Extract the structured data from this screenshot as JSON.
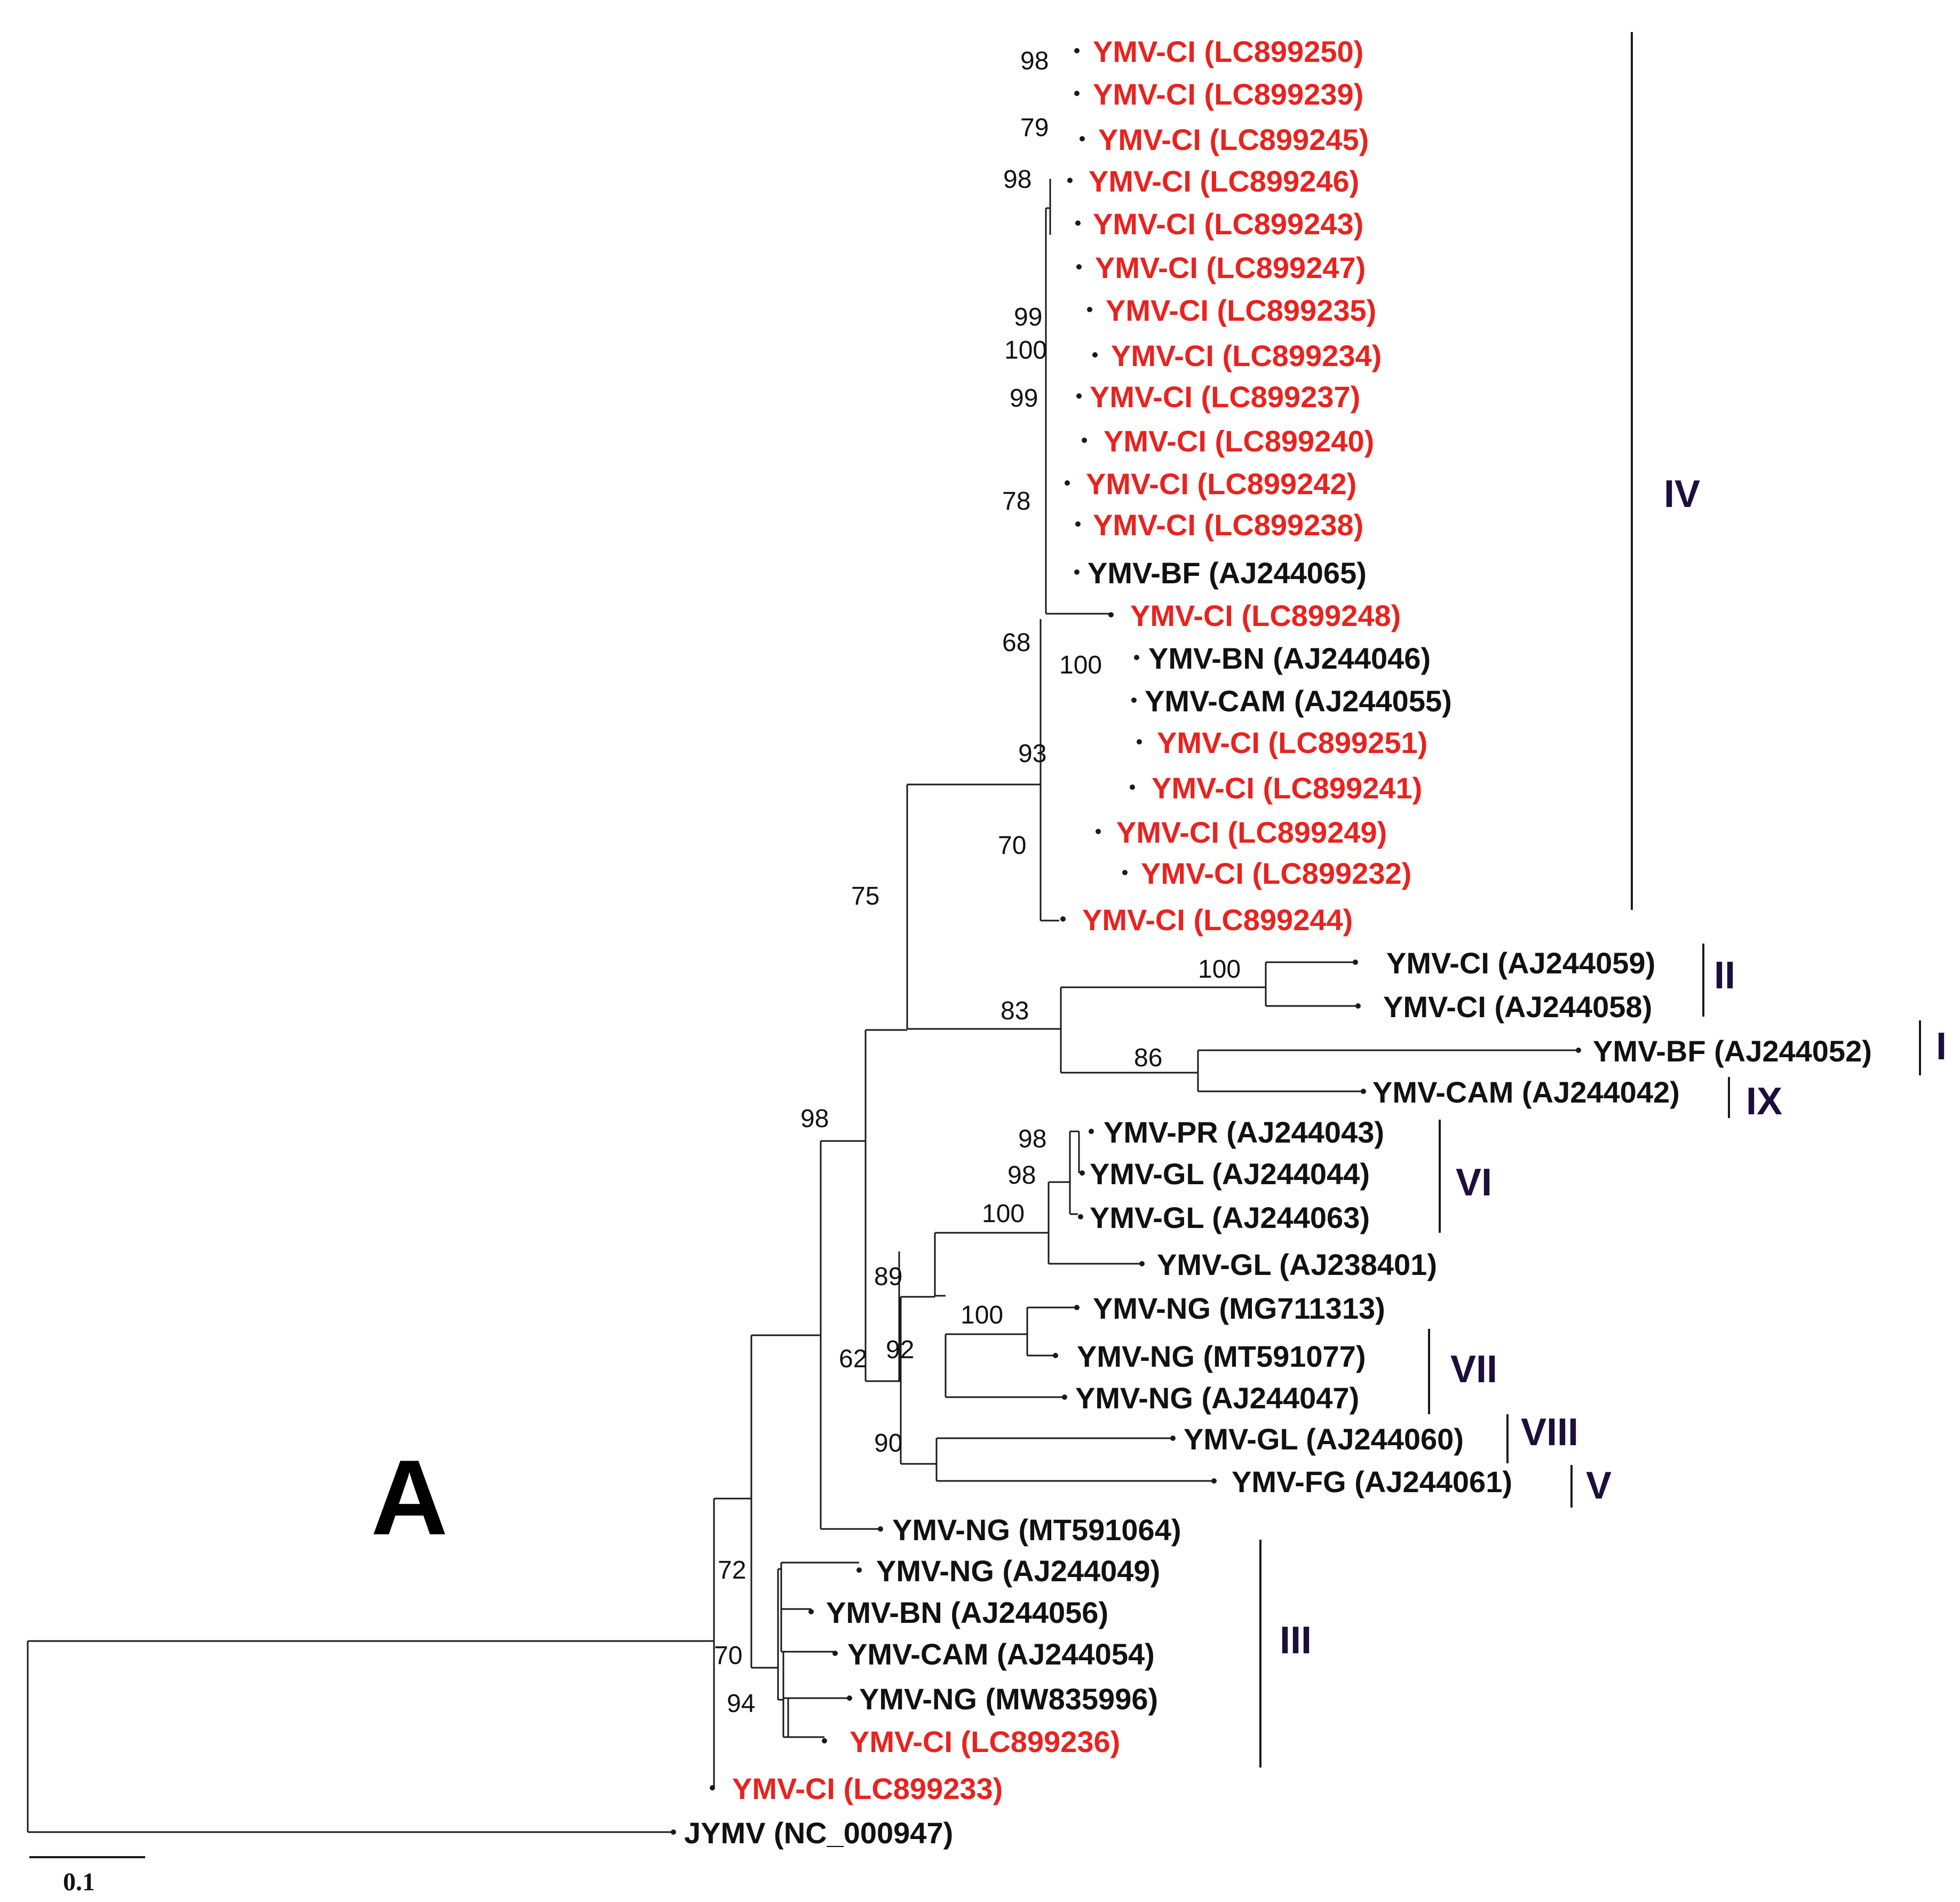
{
  "figure": {
    "panel_label": "A",
    "scale_label": "0.1"
  },
  "leaves": [
    {
      "id": "L1",
      "label": "YMV-CI (LC899250)",
      "color": "red"
    },
    {
      "id": "L2",
      "label": "YMV-CI (LC899239)",
      "color": "red"
    },
    {
      "id": "L3",
      "label": "YMV-CI (LC899245)",
      "color": "red"
    },
    {
      "id": "L4",
      "label": "YMV-CI (LC899246)",
      "color": "red"
    },
    {
      "id": "L5",
      "label": "YMV-CI (LC899243)",
      "color": "red"
    },
    {
      "id": "L6",
      "label": "YMV-CI (LC899247)",
      "color": "red"
    },
    {
      "id": "L7",
      "label": "YMV-CI (LC899235)",
      "color": "red"
    },
    {
      "id": "L8",
      "label": "YMV-CI (LC899234)",
      "color": "red"
    },
    {
      "id": "L9",
      "label": "YMV-CI (LC899237)",
      "color": "red"
    },
    {
      "id": "L10",
      "label": "YMV-CI (LC899240)",
      "color": "red"
    },
    {
      "id": "L11",
      "label": "YMV-CI (LC899242)",
      "color": "red"
    },
    {
      "id": "L12",
      "label": "YMV-CI (LC899238)",
      "color": "red"
    },
    {
      "id": "L13",
      "label": "YMV-BF (AJ244065)",
      "color": "black"
    },
    {
      "id": "L14",
      "label": "YMV-CI (LC899248)",
      "color": "red"
    },
    {
      "id": "L15",
      "label": "YMV-BN (AJ244046)",
      "color": "black"
    },
    {
      "id": "L16",
      "label": "YMV-CAM (AJ244055)",
      "color": "black"
    },
    {
      "id": "L17",
      "label": "YMV-CI (LC899251)",
      "color": "red"
    },
    {
      "id": "L18",
      "label": "YMV-CI (LC899241)",
      "color": "red"
    },
    {
      "id": "L19",
      "label": "YMV-CI (LC899249)",
      "color": "red"
    },
    {
      "id": "L20",
      "label": "YMV-CI (LC899232)",
      "color": "red"
    },
    {
      "id": "L21",
      "label": "YMV-CI (LC899244)",
      "color": "red"
    },
    {
      "id": "L22",
      "label": "YMV-CI (AJ244059)",
      "color": "black"
    },
    {
      "id": "L23",
      "label": "YMV-CI (AJ244058)",
      "color": "black"
    },
    {
      "id": "L24",
      "label": "YMV-BF (AJ244052)",
      "color": "black"
    },
    {
      "id": "L25",
      "label": "YMV-CAM (AJ244042)",
      "color": "black"
    },
    {
      "id": "L26",
      "label": "YMV-PR (AJ244043)",
      "color": "black"
    },
    {
      "id": "L27",
      "label": "YMV-GL (AJ244044)",
      "color": "black"
    },
    {
      "id": "L28",
      "label": "YMV-GL (AJ244063)",
      "color": "black"
    },
    {
      "id": "L29",
      "label": "YMV-GL (AJ238401)",
      "color": "black"
    },
    {
      "id": "L30",
      "label": "YMV-NG (MG711313)",
      "color": "black"
    },
    {
      "id": "L31",
      "label": "YMV-NG (MT591077)",
      "color": "black"
    },
    {
      "id": "L32",
      "label": "YMV-NG (AJ244047)",
      "color": "black"
    },
    {
      "id": "L33",
      "label": "YMV-GL (AJ244060)",
      "color": "black"
    },
    {
      "id": "L34",
      "label": "YMV-FG (AJ244061)",
      "color": "black"
    },
    {
      "id": "L35",
      "label": "YMV-NG (MT591064)",
      "color": "black"
    },
    {
      "id": "L36",
      "label": "YMV-NG (AJ244049)",
      "color": "black"
    },
    {
      "id": "L37",
      "label": "YMV-BN (AJ244056)",
      "color": "black"
    },
    {
      "id": "L38",
      "label": "YMV-CAM (AJ244054)",
      "color": "black"
    },
    {
      "id": "L39",
      "label": "YMV-NG (MW835996)",
      "color": "black"
    },
    {
      "id": "L40",
      "label": "YMV-CI (LC899236)",
      "color": "red"
    },
    {
      "id": "L41",
      "label": "YMV-CI (LC899233)",
      "color": "red"
    },
    {
      "id": "L42",
      "label": "JYMV (NC_000947)",
      "color": "black"
    }
  ],
  "bootstrap": [
    "98",
    "79",
    "98",
    "99",
    "100",
    "99",
    "78",
    "68",
    "100",
    "93",
    "70",
    "75",
    "100",
    "83",
    "86",
    "98",
    "98",
    "98",
    "100",
    "89",
    "100",
    "92",
    "62",
    "90",
    "72",
    "70",
    "94"
  ],
  "clades": [
    "IV",
    "II",
    "I",
    "IX",
    "VI",
    "VII",
    "VIII",
    "V",
    "III"
  ],
  "colors": {
    "highlight": "#e8231f",
    "default": "#111111",
    "clade_label": "#1e0e3c"
  }
}
